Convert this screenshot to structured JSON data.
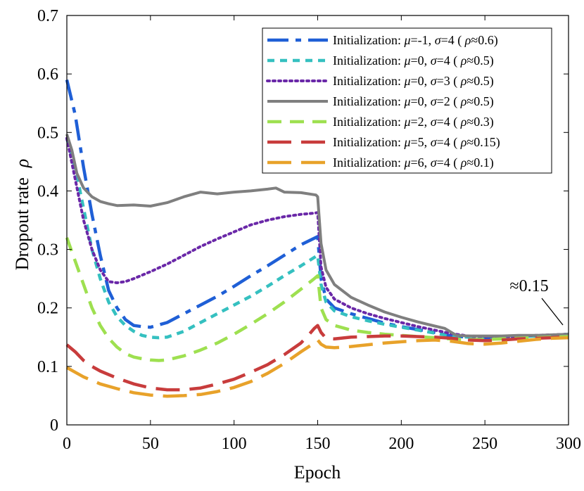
{
  "chart_data": {
    "type": "line",
    "xlabel": "Epoch",
    "ylabel": "Dropout rate",
    "ylabel_symbol": "ρ",
    "xlim": [
      0,
      300
    ],
    "ylim": [
      0,
      0.7
    ],
    "xticks": [
      "0",
      "50",
      "100",
      "150",
      "200",
      "250",
      "300"
    ],
    "yticks": [
      "0",
      "0.1",
      "0.2",
      "0.3",
      "0.4",
      "0.5",
      "0.6",
      "0.7"
    ],
    "xtick_values": [
      0,
      50,
      100,
      150,
      200,
      250,
      300
    ],
    "ytick_values": [
      0,
      0.1,
      0.2,
      0.3,
      0.4,
      0.5,
      0.6,
      0.7
    ],
    "grid": false,
    "legend_position": "top-right",
    "annotation": {
      "text": "≈0.15",
      "x": 300,
      "y": 0.155
    },
    "series": [
      {
        "name": "Initialization: μ=-1, σ=4 (ρ≈0.6)",
        "legend_prefix": "Initialization: ",
        "mu": "μ=-1,",
        "sigma": "σ=4",
        "rho": "(ρ≈0.6)",
        "color": "#1f5fd6",
        "dash": "long-dash-dot",
        "x": [
          0,
          5,
          10,
          15,
          20,
          25,
          30,
          35,
          40,
          45,
          50,
          60,
          70,
          80,
          90,
          100,
          110,
          120,
          130,
          140,
          150,
          152,
          155,
          160,
          170,
          180,
          190,
          200,
          210,
          220,
          230,
          240,
          250,
          260,
          270,
          280,
          290,
          300
        ],
        "y": [
          0.59,
          0.53,
          0.44,
          0.36,
          0.29,
          0.23,
          0.2,
          0.18,
          0.17,
          0.168,
          0.167,
          0.175,
          0.19,
          0.205,
          0.22,
          0.237,
          0.255,
          0.272,
          0.29,
          0.308,
          0.322,
          0.25,
          0.215,
          0.2,
          0.19,
          0.182,
          0.174,
          0.168,
          0.163,
          0.158,
          0.152,
          0.15,
          0.149,
          0.15,
          0.151,
          0.152,
          0.153,
          0.155
        ]
      },
      {
        "name": "Initialization: μ=0, σ=4 (ρ≈0.5)",
        "legend_prefix": "Initialization: ",
        "mu": "μ=0,",
        "sigma": "σ=4",
        "rho": "(ρ≈0.5)",
        "color": "#35c0c0",
        "dash": "short-dash",
        "x": [
          0,
          5,
          10,
          15,
          20,
          25,
          30,
          35,
          40,
          45,
          50,
          55,
          60,
          70,
          80,
          90,
          100,
          110,
          120,
          130,
          140,
          150,
          152,
          155,
          160,
          170,
          180,
          190,
          200,
          210,
          220,
          230,
          240,
          250,
          260,
          270,
          280,
          290,
          300
        ],
        "y": [
          0.49,
          0.44,
          0.37,
          0.3,
          0.25,
          0.21,
          0.185,
          0.17,
          0.16,
          0.153,
          0.15,
          0.149,
          0.15,
          0.16,
          0.175,
          0.19,
          0.205,
          0.22,
          0.237,
          0.255,
          0.272,
          0.29,
          0.24,
          0.21,
          0.195,
          0.185,
          0.178,
          0.172,
          0.167,
          0.162,
          0.157,
          0.152,
          0.15,
          0.149,
          0.15,
          0.151,
          0.152,
          0.153,
          0.155
        ]
      },
      {
        "name": "Initialization: μ=0, σ=3 (ρ≈0.5)",
        "legend_prefix": "Initialization: ",
        "mu": "μ=0,",
        "sigma": "σ=3",
        "rho": "(ρ≈0.5)",
        "color": "#6a28a8",
        "dash": "dotted",
        "x": [
          0,
          5,
          10,
          15,
          20,
          25,
          30,
          35,
          40,
          50,
          60,
          70,
          80,
          90,
          100,
          110,
          120,
          130,
          140,
          148,
          150,
          152,
          155,
          160,
          170,
          180,
          190,
          200,
          210,
          220,
          230,
          240,
          250,
          260,
          270,
          280,
          290,
          300
        ],
        "y": [
          0.49,
          0.42,
          0.35,
          0.3,
          0.265,
          0.245,
          0.243,
          0.245,
          0.25,
          0.262,
          0.275,
          0.29,
          0.305,
          0.318,
          0.33,
          0.342,
          0.35,
          0.356,
          0.36,
          0.362,
          0.363,
          0.27,
          0.235,
          0.215,
          0.2,
          0.19,
          0.182,
          0.175,
          0.168,
          0.162,
          0.156,
          0.152,
          0.151,
          0.151,
          0.152,
          0.153,
          0.154,
          0.155
        ]
      },
      {
        "name": "Initialization: μ=0, σ=2 (ρ≈0.5)",
        "legend_prefix": "Initialization: ",
        "mu": "μ=0,",
        "sigma": "σ=2",
        "rho": "(ρ≈0.5)",
        "color": "#7f7f7f",
        "dash": "solid",
        "x": [
          0,
          3,
          6,
          10,
          15,
          20,
          25,
          30,
          40,
          50,
          60,
          70,
          80,
          90,
          100,
          110,
          120,
          125,
          130,
          140,
          149,
          150,
          152,
          155,
          160,
          170,
          180,
          190,
          200,
          210,
          220,
          226,
          230,
          233,
          240,
          250,
          260,
          270,
          280,
          290,
          300
        ],
        "y": [
          0.497,
          0.47,
          0.43,
          0.405,
          0.39,
          0.382,
          0.378,
          0.375,
          0.376,
          0.374,
          0.38,
          0.39,
          0.398,
          0.395,
          0.398,
          0.4,
          0.403,
          0.405,
          0.398,
          0.397,
          0.393,
          0.39,
          0.31,
          0.265,
          0.24,
          0.218,
          0.205,
          0.193,
          0.184,
          0.176,
          0.169,
          0.165,
          0.158,
          0.153,
          0.152,
          0.152,
          0.152,
          0.153,
          0.153,
          0.154,
          0.155
        ]
      },
      {
        "name": "Initialization: μ=2, σ=4 (ρ≈0.3)",
        "legend_prefix": "Initialization: ",
        "mu": "μ=2,",
        "sigma": "σ=4",
        "rho": "(ρ≈0.3)",
        "color": "#9ee050",
        "dash": "dash",
        "x": [
          0,
          5,
          10,
          15,
          20,
          25,
          30,
          35,
          40,
          45,
          50,
          55,
          60,
          70,
          80,
          90,
          100,
          110,
          120,
          130,
          140,
          148,
          150,
          152,
          155,
          160,
          170,
          180,
          190,
          200,
          210,
          220,
          230,
          240,
          250,
          260,
          270,
          280,
          290,
          300
        ],
        "y": [
          0.32,
          0.28,
          0.24,
          0.2,
          0.17,
          0.148,
          0.133,
          0.122,
          0.116,
          0.113,
          0.111,
          0.11,
          0.111,
          0.118,
          0.128,
          0.14,
          0.155,
          0.172,
          0.19,
          0.21,
          0.232,
          0.25,
          0.255,
          0.2,
          0.18,
          0.17,
          0.162,
          0.158,
          0.155,
          0.153,
          0.151,
          0.149,
          0.147,
          0.146,
          0.146,
          0.147,
          0.148,
          0.149,
          0.15,
          0.151
        ]
      },
      {
        "name": "Initialization: μ=5, σ=4 (ρ≈0.15)",
        "legend_prefix": "Initialization: ",
        "mu": "μ=5,",
        "sigma": "σ=4",
        "rho": "(ρ≈0.15)",
        "color": "#c83c3c",
        "dash": "long-dash",
        "x": [
          0,
          5,
          10,
          15,
          20,
          30,
          40,
          50,
          60,
          70,
          80,
          90,
          100,
          110,
          120,
          130,
          140,
          145,
          148,
          150,
          152,
          155,
          160,
          170,
          180,
          190,
          200,
          210,
          220,
          230,
          240,
          250,
          260,
          270,
          280,
          290,
          300
        ],
        "y": [
          0.137,
          0.125,
          0.11,
          0.1,
          0.092,
          0.08,
          0.07,
          0.063,
          0.06,
          0.06,
          0.063,
          0.07,
          0.078,
          0.09,
          0.103,
          0.12,
          0.14,
          0.155,
          0.165,
          0.17,
          0.158,
          0.148,
          0.147,
          0.15,
          0.151,
          0.152,
          0.152,
          0.151,
          0.15,
          0.148,
          0.145,
          0.144,
          0.145,
          0.147,
          0.148,
          0.149,
          0.151
        ]
      },
      {
        "name": "Initialization: μ=6, σ=4 (ρ≈0.1)",
        "legend_prefix": "Initialization: ",
        "mu": "μ=6,",
        "sigma": "σ=4",
        "rho": "(ρ≈0.1)",
        "color": "#e8a22a",
        "dash": "long-dash",
        "x": [
          0,
          5,
          10,
          20,
          30,
          40,
          50,
          60,
          70,
          80,
          90,
          100,
          110,
          120,
          130,
          140,
          148,
          150,
          152,
          155,
          160,
          170,
          180,
          190,
          200,
          210,
          220,
          230,
          240,
          250,
          260,
          270,
          280,
          290,
          300
        ],
        "y": [
          0.098,
          0.09,
          0.082,
          0.07,
          0.062,
          0.055,
          0.051,
          0.049,
          0.05,
          0.052,
          0.057,
          0.064,
          0.074,
          0.088,
          0.105,
          0.125,
          0.14,
          0.145,
          0.138,
          0.133,
          0.132,
          0.134,
          0.137,
          0.14,
          0.142,
          0.144,
          0.145,
          0.143,
          0.139,
          0.138,
          0.14,
          0.143,
          0.146,
          0.148,
          0.149
        ]
      }
    ]
  }
}
